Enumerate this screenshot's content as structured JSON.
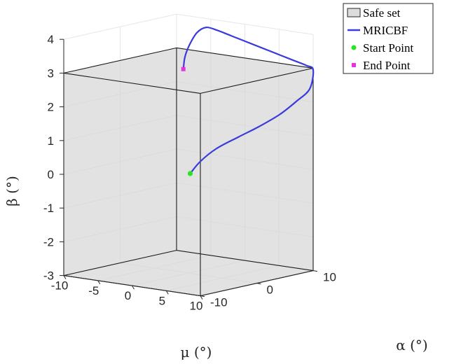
{
  "chart_data": {
    "type": "line",
    "view": "3d",
    "xlabel": "μ (°)",
    "ylabel": "α (°)",
    "zlabel": "β (°)",
    "xlim": [
      -10,
      10
    ],
    "ylim": [
      -10,
      10
    ],
    "zlim": [
      -3,
      4
    ],
    "xticks": [
      "-10",
      "-5",
      "0",
      "5",
      "10"
    ],
    "yticks": [
      "-10",
      "0",
      "10"
    ],
    "zticks": [
      "-3",
      "-2",
      "-1",
      "0",
      "1",
      "2",
      "3",
      "4"
    ],
    "grid": true,
    "legend_position": "top-right",
    "legend": [
      {
        "label": "Safe set",
        "kind": "patch",
        "color": "#dcdcdc"
      },
      {
        "label": "MRICBF",
        "kind": "line",
        "color": "#3b3bdc"
      },
      {
        "label": "Start Point",
        "kind": "marker",
        "color": "#29e329"
      },
      {
        "label": "End Point",
        "kind": "marker",
        "color": "#e633e0"
      }
    ],
    "safe_set": {
      "mu": [
        -10,
        10
      ],
      "alpha": [
        -10,
        10
      ],
      "beta": [
        -3,
        3
      ]
    },
    "series": [
      {
        "name": "MRICBF",
        "color": "#3b3bdc",
        "mu": [
          4.8,
          5.0,
          5.3,
          6.0,
          7.0,
          8.0,
          9.0,
          9.9,
          10.0,
          9.0,
          7.0,
          4.0,
          1.0,
          -2.0,
          -4.0,
          -5.5,
          -6.2,
          -6.5,
          -6.3,
          -5.7
        ],
        "alpha": [
          -5.5,
          -4.0,
          -1.5,
          1.5,
          4.0,
          6.5,
          8.2,
          9.5,
          10.0,
          10.0,
          10.0,
          10.0,
          10.0,
          10.0,
          10.0,
          9.8,
          9.0,
          8.0,
          7.0,
          6.0
        ],
        "beta": [
          0.3,
          0.6,
          0.9,
          1.15,
          1.4,
          1.7,
          2.05,
          2.4,
          2.95,
          3.05,
          3.15,
          3.3,
          3.45,
          3.6,
          3.7,
          3.75,
          3.6,
          3.25,
          2.95,
          2.65
        ]
      }
    ],
    "start_point": {
      "mu": 4.8,
      "alpha": -5.5,
      "beta": 0.3
    },
    "end_point": {
      "mu": -5.7,
      "alpha": 6.0,
      "beta": 2.65
    }
  }
}
